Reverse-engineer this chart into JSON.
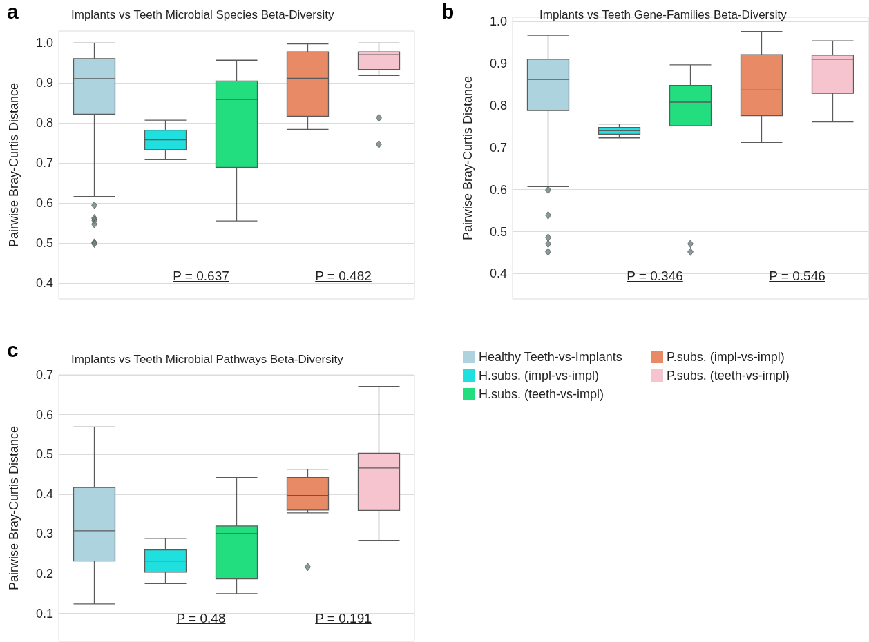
{
  "chart_data": [
    {
      "type": "box",
      "title": "Implants vs Teeth Microbial Species Beta-Diversity",
      "ylabel": "Pairwise Bray-Curtis Distance",
      "annotations": [
        "a",
        "P = 0.637",
        "P = 0.482"
      ],
      "categories": [
        null,
        null,
        null,
        null,
        null
      ],
      "ylim": [
        0.36,
        1.03
      ],
      "yticks": [
        0.4,
        0.5,
        0.6,
        0.7,
        0.8,
        0.9,
        {
          "value": 1,
          "label": "1.0"
        }
      ],
      "grid": "y",
      "tick_labels": "y",
      "marker": "diamond",
      "series": [
        {
          "color": "#add3de",
          "boxes": [
            {
              "low": 0.616,
              "q1": 0.822,
              "median": 0.911,
              "q3": 0.961,
              "high": 1.0,
              "outliers": [
                0.594,
                0.562,
                0.557,
                0.547,
                0.501,
                0.498
              ]
            },
            null,
            null,
            null,
            null
          ]
        },
        {
          "color": "#1fdfdf",
          "boxes": [
            null,
            {
              "low": 0.708,
              "q1": 0.733,
              "median": 0.758,
              "q3": 0.782,
              "high": 0.807
            },
            null,
            null,
            null
          ]
        },
        {
          "color": "#22de7e",
          "boxes": [
            null,
            null,
            {
              "low": 0.555,
              "q1": 0.689,
              "median": 0.859,
              "q3": 0.905,
              "high": 0.957
            },
            null,
            null
          ]
        },
        {
          "color": "#e98a66",
          "boxes": [
            null,
            null,
            null,
            {
              "low": 0.784,
              "q1": 0.817,
              "median": 0.912,
              "q3": 0.978,
              "high": 0.998
            },
            null
          ]
        },
        {
          "color": "#f6c4cf",
          "boxes": [
            null,
            null,
            null,
            null,
            {
              "low": 0.919,
              "q1": 0.934,
              "median": 0.971,
              "q3": 0.978,
              "high": 1.0,
              "outliers": [
                0.813,
                0.747
              ]
            }
          ]
        }
      ]
    },
    {
      "type": "box",
      "title": "Implants vs Teeth Gene-Families Beta-Diversity",
      "ylabel": "Pairwise Bray-Curtis Distance",
      "annotations": [
        "b",
        "P = 0.346",
        "P = 0.546"
      ],
      "categories": [
        null,
        null,
        null,
        null,
        null
      ],
      "ylim": [
        0.34,
        1.01
      ],
      "yticks": [
        0.4,
        0.5,
        0.6,
        0.7,
        0.8,
        0.9,
        {
          "value": 1,
          "label": "1.0"
        }
      ],
      "grid": "y",
      "tick_labels": "y",
      "marker": "diamond",
      "series": [
        {
          "color": "#add3de",
          "boxes": [
            {
              "low": 0.607,
              "q1": 0.788,
              "median": 0.862,
              "q3": 0.91,
              "high": 0.967,
              "outliers": [
                0.599,
                0.539,
                0.486,
                0.471,
                0.452
              ]
            },
            null,
            null,
            null,
            null
          ]
        },
        {
          "color": "#1fdfdf",
          "boxes": [
            null,
            {
              "low": 0.723,
              "q1": 0.732,
              "median": 0.74,
              "q3": 0.748,
              "high": 0.756
            },
            null,
            null,
            null
          ]
        },
        {
          "color": "#22de7e",
          "boxes": [
            null,
            null,
            {
              "low": 0.752,
              "q1": 0.752,
              "median": 0.808,
              "q3": 0.848,
              "high": 0.897,
              "outliers": [
                0.471,
                0.452
              ]
            },
            null,
            null
          ]
        },
        {
          "color": "#e98a66",
          "boxes": [
            null,
            null,
            null,
            {
              "low": 0.712,
              "q1": 0.776,
              "median": 0.837,
              "q3": 0.921,
              "high": 0.976
            },
            null
          ]
        },
        {
          "color": "#f6c4cf",
          "boxes": [
            null,
            null,
            null,
            null,
            {
              "low": 0.761,
              "q1": 0.829,
              "median": 0.91,
              "q3": 0.92,
              "high": 0.954
            }
          ]
        }
      ]
    },
    {
      "type": "box",
      "title": "Implants vs Teeth Microbial Pathways Beta-Diversity",
      "ylabel": "Pairwise Bray-Curtis Distance",
      "annotations": [
        "c",
        "P = 0.48",
        "P = 0.191"
      ],
      "categories": [
        null,
        null,
        null,
        null,
        null
      ],
      "ylim": [
        0.03,
        0.7
      ],
      "yticks": [
        0.1,
        0.2,
        0.3,
        0.4,
        0.5,
        0.6,
        0.7
      ],
      "grid": "y",
      "tick_labels": "y",
      "marker": "diamond",
      "legend": "right",
      "series": [
        {
          "name": "Healthy Teeth-vs-Implants",
          "color": "#add3de",
          "boxes": [
            {
              "low": 0.124,
              "q1": 0.232,
              "median": 0.308,
              "q3": 0.417,
              "high": 0.569
            },
            null,
            null,
            null,
            null
          ]
        },
        {
          "name": "H.subs. (impl-vs-impl)",
          "color": "#1fdfdf",
          "boxes": [
            null,
            {
              "low": 0.175,
              "q1": 0.204,
              "median": 0.232,
              "q3": 0.26,
              "high": 0.289
            },
            null,
            null,
            null
          ]
        },
        {
          "name": "H.subs. (teeth-vs-impl)",
          "color": "#22de7e",
          "boxes": [
            null,
            null,
            {
              "low": 0.15,
              "q1": 0.187,
              "median": 0.301,
              "q3": 0.32,
              "high": 0.442
            },
            null,
            null
          ]
        },
        {
          "name": "P.subs. (impl-vs-impl)",
          "color": "#e98a66",
          "boxes": [
            null,
            null,
            null,
            {
              "low": 0.353,
              "q1": 0.36,
              "median": 0.397,
              "q3": 0.442,
              "high": 0.463,
              "outliers": [
                0.217
              ]
            },
            null
          ]
        },
        {
          "name": "P.subs. (teeth-vs-impl)",
          "color": "#f6c4cf",
          "boxes": [
            null,
            null,
            null,
            null,
            {
              "low": 0.284,
              "q1": 0.359,
              "median": 0.466,
              "q3": 0.503,
              "high": 0.671
            }
          ]
        }
      ]
    }
  ]
}
